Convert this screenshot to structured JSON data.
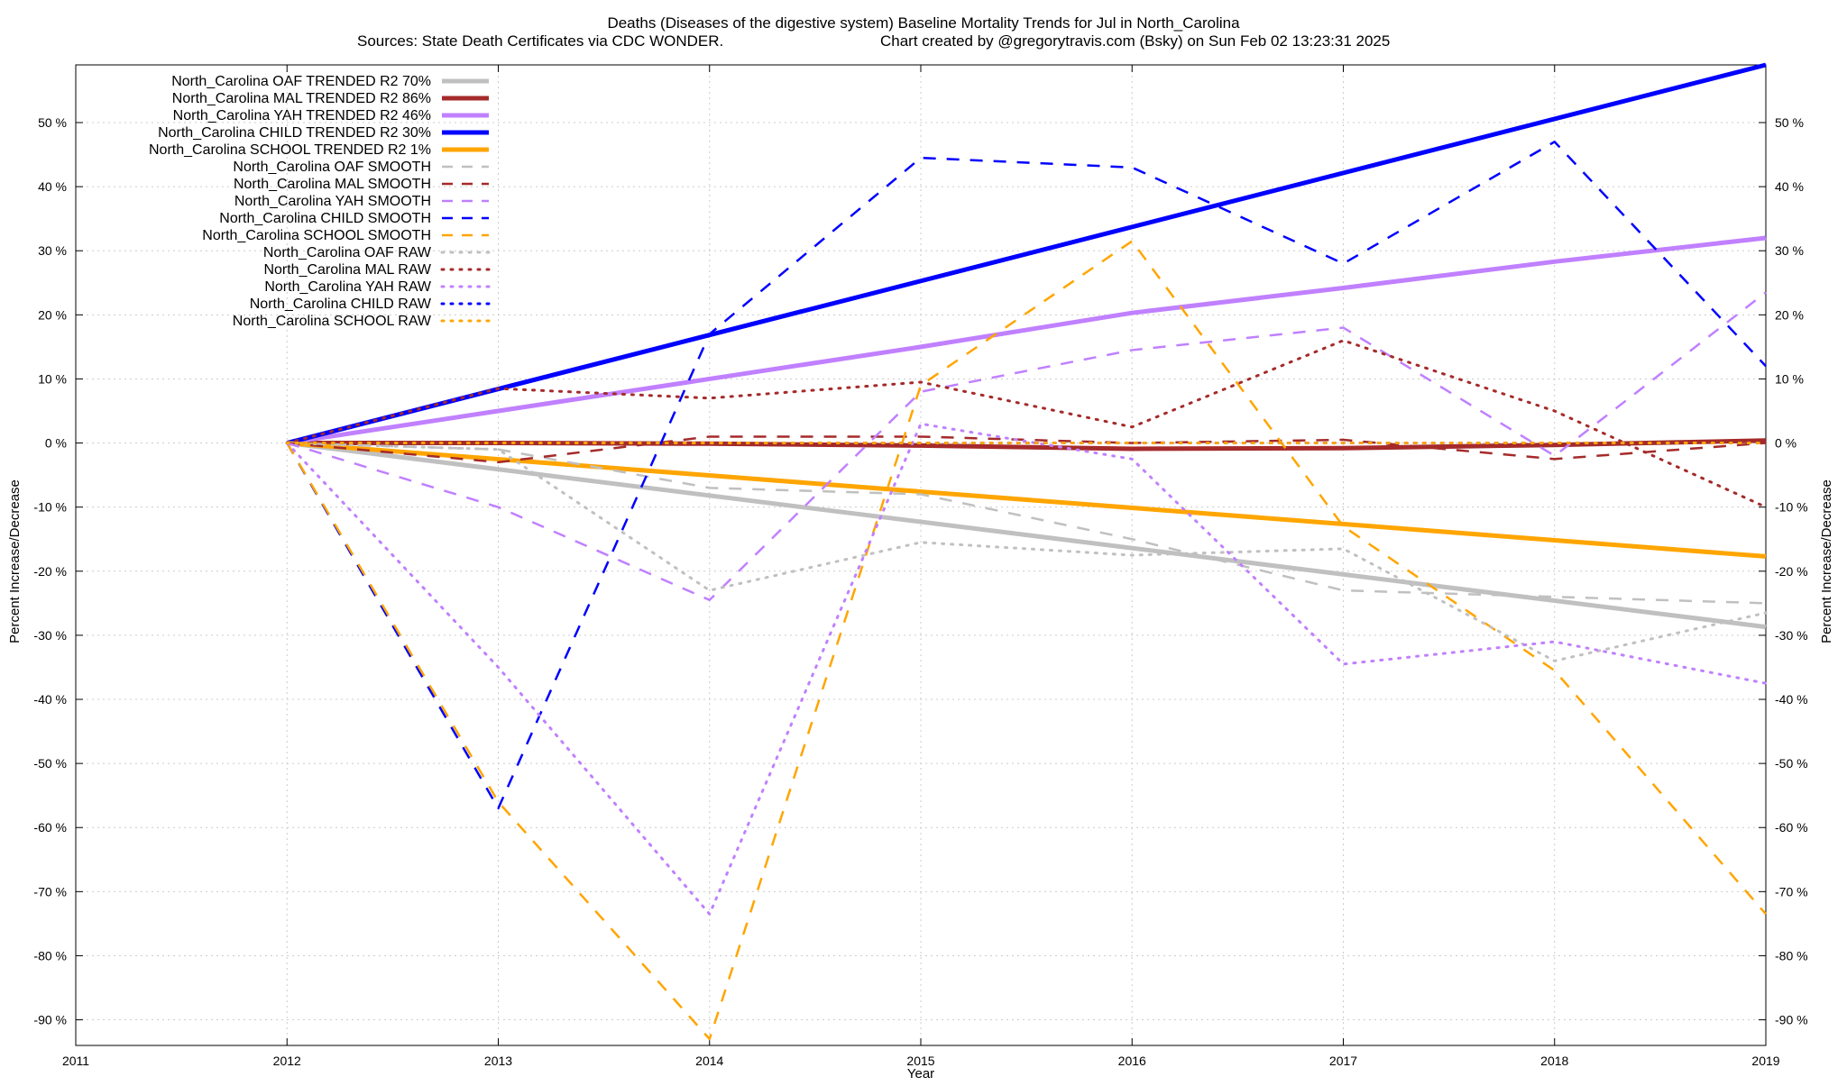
{
  "chart_data": {
    "type": "line",
    "title": "Deaths (Diseases of the digestive system)  Baseline Mortality Trends for Jul in North_Carolina",
    "subtitle_left": "Sources: State Death Certificates via CDC WONDER.",
    "subtitle_right": "Chart created by @gregorytravis.com (Bsky) on Sun Feb 02 13:23:31 2025",
    "xlabel": "Year",
    "ylabel": "Percent Increase/Decrease",
    "xlim": [
      2011,
      2019
    ],
    "ylim": [
      -94,
      59
    ],
    "x_ticks": [
      "2011",
      "2012",
      "2013",
      "2014",
      "2015",
      "2016",
      "2017",
      "2018",
      "2019"
    ],
    "y_ticks": [
      50,
      40,
      30,
      20,
      10,
      0,
      -10,
      -20,
      -30,
      -40,
      -50,
      -60,
      -70,
      -80,
      -90
    ],
    "y_tick_labels": [
      "50 %",
      "40 %",
      "30 %",
      "20 %",
      "10 %",
      "0 %",
      "-10 %",
      "-20 %",
      "-30 %",
      "-40 %",
      "-50 %",
      "-60 %",
      "-70 %",
      "-80 %",
      "-90 %"
    ],
    "grid": true,
    "legend_position": "top-left",
    "series": [
      {
        "name": "North_Carolina OAF TRENDED R2  70%",
        "color": "#c0c0c0",
        "style": "solid",
        "x": [
          2012,
          2019
        ],
        "y": [
          0,
          -28.7
        ]
      },
      {
        "name": "North_Carolina MAL TRENDED R2  86%",
        "color": "#a52a2a",
        "style": "solid",
        "x": [
          2012,
          2013,
          2014,
          2015,
          2016,
          2017,
          2018,
          2019
        ],
        "y": [
          0,
          0,
          -0.1,
          -0.4,
          -0.9,
          -0.8,
          -0.3,
          0.4
        ]
      },
      {
        "name": "North_Carolina YAH TRENDED R2  46%",
        "color": "#c080ff",
        "style": "solid",
        "x": [
          2012,
          2013,
          2014,
          2015,
          2016,
          2017,
          2018,
          2019
        ],
        "y": [
          0,
          5,
          10,
          15,
          20.3,
          24.2,
          28.3,
          32
        ]
      },
      {
        "name": "North_Carolina CHILD TRENDED R2  30%",
        "color": "#0000ff",
        "style": "solid",
        "x": [
          2012,
          2019
        ],
        "y": [
          0,
          59
        ]
      },
      {
        "name": "North_Carolina SCHOOL TRENDED R2   1%",
        "color": "#ffa500",
        "style": "solid",
        "x": [
          2012,
          2019
        ],
        "y": [
          0,
          -17.7
        ]
      },
      {
        "name": "North_Carolina OAF SMOOTH",
        "color": "#c0c0c0",
        "style": "dashed",
        "x": [
          2012,
          2013,
          2014,
          2015,
          2016,
          2017,
          2018,
          2019
        ],
        "y": [
          0,
          -1,
          -7,
          -8,
          -15,
          -23,
          -24,
          -25
        ]
      },
      {
        "name": "North_Carolina MAL SMOOTH",
        "color": "#a52a2a",
        "style": "dashed",
        "x": [
          2012,
          2013,
          2014,
          2015,
          2016,
          2017,
          2018,
          2019
        ],
        "y": [
          0,
          -3,
          1,
          1,
          0,
          0.5,
          -2.5,
          0
        ]
      },
      {
        "name": "North_Carolina YAH SMOOTH",
        "color": "#c080ff",
        "style": "dashed",
        "x": [
          2012,
          2013,
          2014,
          2015,
          2016,
          2017,
          2018,
          2019
        ],
        "y": [
          0,
          -10,
          -24.5,
          8,
          14.5,
          18,
          -2,
          23.5
        ]
      },
      {
        "name": "North_Carolina CHILD SMOOTH",
        "color": "#0000ff",
        "style": "dashed",
        "x": [
          2012,
          2013,
          2014,
          2015,
          2016,
          2017,
          2018,
          2019
        ],
        "y": [
          0,
          -57,
          17,
          44.5,
          43,
          28,
          47,
          12
        ]
      },
      {
        "name": "North_Carolina SCHOOL SMOOTH",
        "color": "#ffa500",
        "style": "dashed",
        "x": [
          2012,
          2013,
          2014,
          2015,
          2016,
          2017,
          2018,
          2019
        ],
        "y": [
          0,
          -56,
          -93,
          9,
          31.5,
          -13,
          -35.5,
          -73.5
        ]
      },
      {
        "name": "North_Carolina OAF RAW",
        "color": "#c0c0c0",
        "style": "dotted",
        "x": [
          2012,
          2013,
          2014,
          2015,
          2016,
          2017,
          2018,
          2019
        ],
        "y": [
          0,
          -1,
          -23,
          -15.5,
          -17.5,
          -16.5,
          -34,
          -26.5
        ]
      },
      {
        "name": "North_Carolina MAL RAW",
        "color": "#a52a2a",
        "style": "dotted",
        "x": [
          2012,
          2013,
          2014,
          2015,
          2016,
          2017,
          2018,
          2019
        ],
        "y": [
          0,
          8.5,
          7,
          9.5,
          2.5,
          16,
          5,
          -10
        ]
      },
      {
        "name": "North_Carolina YAH RAW",
        "color": "#c080ff",
        "style": "dotted",
        "x": [
          2012,
          2013,
          2014,
          2015,
          2016,
          2017,
          2018,
          2019
        ],
        "y": [
          0,
          -35,
          -73.5,
          3,
          -2.5,
          -34.5,
          -31,
          -37.5
        ]
      },
      {
        "name": "North_Carolina CHILD RAW",
        "color": "#0000ff",
        "style": "dotted",
        "x": [
          2012,
          2013,
          2014,
          2015,
          2016,
          2017,
          2018,
          2019
        ],
        "y": [
          0,
          0,
          0,
          0,
          0,
          0,
          0,
          0
        ]
      },
      {
        "name": "North_Carolina SCHOOL RAW",
        "color": "#ffa500",
        "style": "dotted",
        "x": [
          2012,
          2013,
          2014,
          2015,
          2016,
          2017,
          2018,
          2019
        ],
        "y": [
          0,
          0,
          0,
          0,
          0,
          0,
          0,
          0
        ]
      }
    ]
  }
}
